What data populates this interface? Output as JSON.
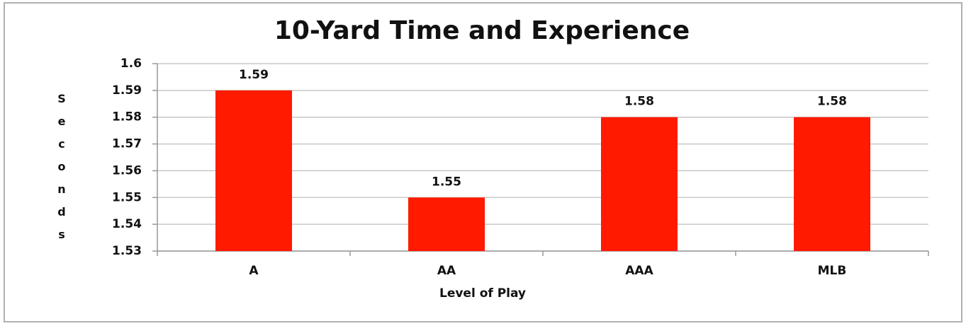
{
  "chart_data": {
    "type": "bar",
    "title": "10-Yard Time and Experience",
    "categories": [
      "A",
      "AA",
      "AAA",
      "MLB"
    ],
    "values": [
      1.59,
      1.55,
      1.58,
      1.58
    ],
    "color": "#ff1a00",
    "x_label": "Level of Play",
    "y_label": "Seconds",
    "ylim": [
      1.53,
      1.6
    ],
    "yticks": [
      1.53,
      1.54,
      1.55,
      1.56,
      1.57,
      1.58,
      1.59,
      1.6
    ],
    "grid": true
  }
}
